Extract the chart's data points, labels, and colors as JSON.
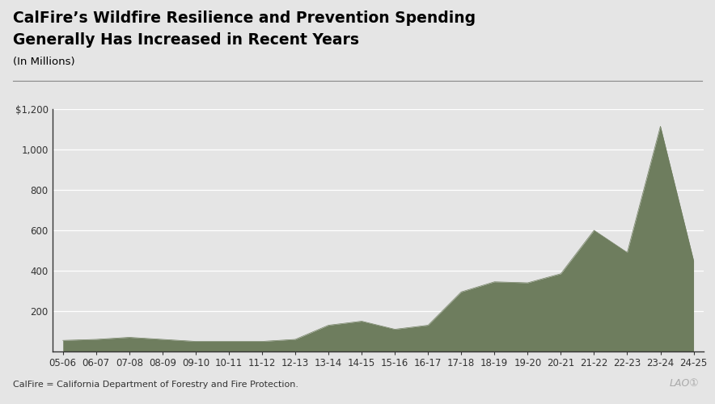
{
  "title_line1": "CalFire’s Wildfire Resilience and Prevention Spending",
  "title_line2": "Generally Has Increased in Recent Years",
  "subtitle": "(In Millions)",
  "footer": "CalFire = California Department of Forestry and Fire Protection.",
  "background_color": "#e5e5e5",
  "plot_bg_color": "#e5e5e5",
  "fill_color": "#6e7d5e",
  "line_color": "#6e7d5e",
  "categories": [
    "05-06",
    "06-07",
    "07-08",
    "08-09",
    "09-10",
    "10-11",
    "11-12",
    "12-13",
    "13-14",
    "14-15",
    "15-16",
    "16-17",
    "17-18",
    "18-19",
    "19-20",
    "20-21",
    "21-22",
    "22-23",
    "23-24",
    "24-25"
  ],
  "values": [
    55,
    60,
    70,
    60,
    50,
    50,
    50,
    60,
    130,
    150,
    110,
    130,
    295,
    345,
    340,
    385,
    600,
    490,
    1115,
    450
  ],
  "ylim": [
    0,
    1200
  ],
  "yticks": [
    200,
    400,
    600,
    800,
    1000,
    1200
  ],
  "ytick_labels": [
    "200",
    "400",
    "600",
    "800",
    "1,000",
    "$1,200"
  ],
  "title_fontsize": 13.5,
  "subtitle_fontsize": 9.5,
  "tick_fontsize": 8.5
}
